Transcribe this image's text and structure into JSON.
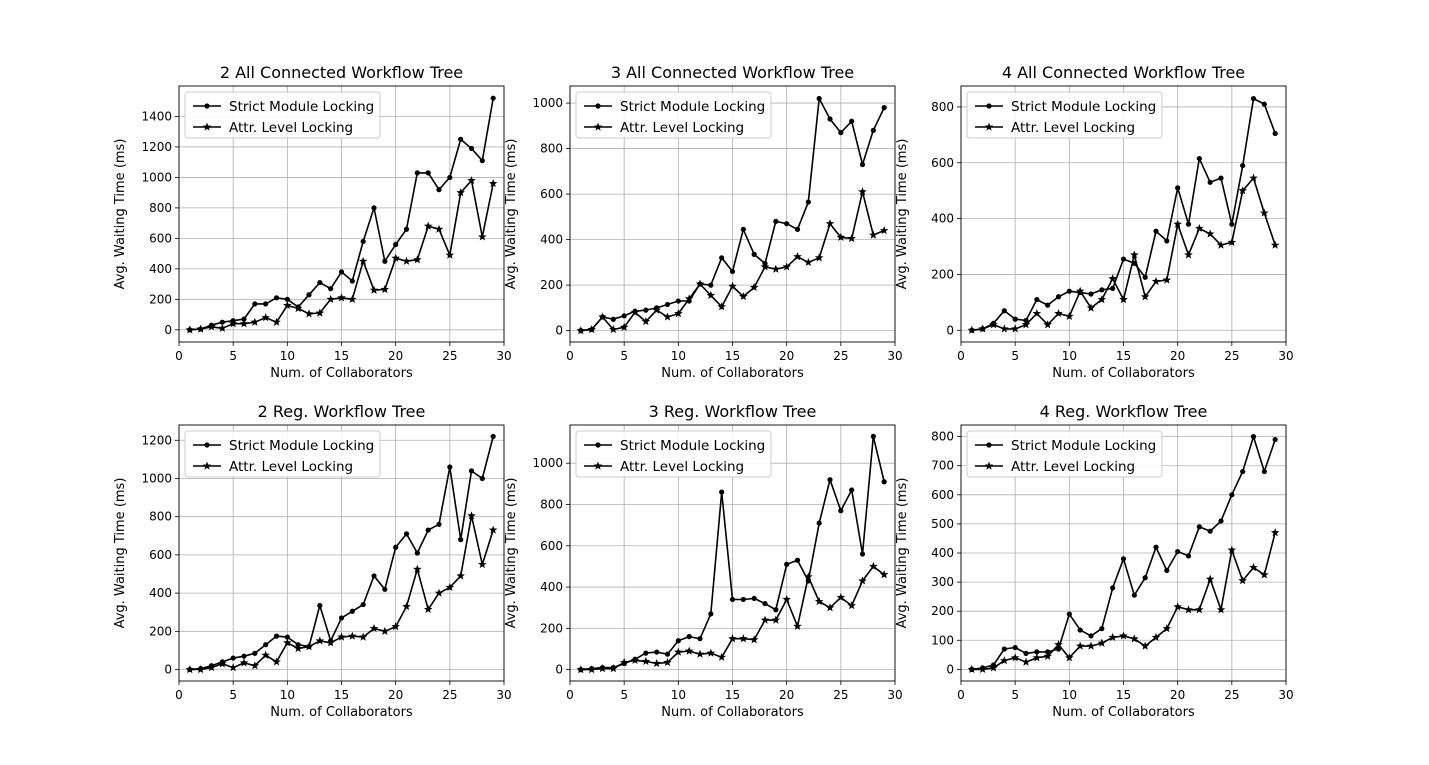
{
  "chart_data": [
    {
      "type": "line",
      "title": "2 All Connected Workflow Tree",
      "xlabel": "Num. of Collaborators",
      "ylabel": "Avg. Waiting Time (ms)",
      "xlim": [
        0,
        30
      ],
      "ylim": [
        -80,
        1600
      ],
      "xticks": [
        0,
        5,
        10,
        15,
        20,
        25,
        30
      ],
      "yticks": [
        0,
        200,
        400,
        600,
        800,
        1000,
        1200,
        1400
      ],
      "grid": true,
      "legend_position": "top-left",
      "x": [
        1,
        2,
        3,
        4,
        5,
        6,
        7,
        8,
        9,
        10,
        11,
        12,
        13,
        14,
        15,
        16,
        17,
        18,
        19,
        20,
        21,
        22,
        23,
        24,
        25,
        26,
        27,
        28,
        29
      ],
      "series": [
        {
          "name": "Strict Module Locking",
          "marker": "dot",
          "color": "#000000",
          "values": [
            0,
            5,
            30,
            50,
            60,
            70,
            170,
            170,
            210,
            200,
            150,
            230,
            310,
            270,
            380,
            320,
            580,
            800,
            450,
            560,
            660,
            1030,
            1030,
            920,
            1000,
            1250,
            1190,
            1110,
            1520
          ]
        },
        {
          "name": "Attr. Level Locking",
          "marker": "star",
          "color": "#000000",
          "values": [
            0,
            5,
            20,
            10,
            40,
            40,
            50,
            80,
            50,
            160,
            140,
            105,
            110,
            200,
            210,
            200,
            450,
            260,
            265,
            470,
            450,
            460,
            680,
            660,
            490,
            900,
            980,
            610,
            960
          ]
        }
      ]
    },
    {
      "type": "line",
      "title": "3 All Connected Workflow Tree",
      "xlabel": "Num. of Collaborators",
      "ylabel": "Avg. Waiting Time (ms)",
      "xlim": [
        0,
        30
      ],
      "ylim": [
        -50,
        1075
      ],
      "xticks": [
        0,
        5,
        10,
        15,
        20,
        25,
        30
      ],
      "yticks": [
        0,
        200,
        400,
        600,
        800,
        1000
      ],
      "grid": true,
      "legend_position": "top-left",
      "x": [
        1,
        2,
        3,
        4,
        5,
        6,
        7,
        8,
        9,
        10,
        11,
        12,
        13,
        14,
        15,
        16,
        17,
        18,
        19,
        20,
        21,
        22,
        23,
        24,
        25,
        26,
        27,
        28,
        29
      ],
      "series": [
        {
          "name": "Strict Module Locking",
          "marker": "dot",
          "color": "#000000",
          "values": [
            0,
            5,
            60,
            50,
            65,
            85,
            90,
            100,
            115,
            130,
            130,
            205,
            200,
            320,
            260,
            445,
            335,
            295,
            480,
            470,
            445,
            565,
            1020,
            930,
            870,
            920,
            730,
            880,
            980
          ]
        },
        {
          "name": "Attr. Level Locking",
          "marker": "star",
          "color": "#000000",
          "values": [
            0,
            5,
            60,
            5,
            15,
            80,
            40,
            90,
            60,
            75,
            140,
            205,
            155,
            105,
            195,
            150,
            190,
            280,
            270,
            280,
            325,
            300,
            320,
            470,
            410,
            405,
            610,
            420,
            440
          ]
        }
      ]
    },
    {
      "type": "line",
      "title": "4 All Connected Workflow Tree",
      "xlabel": "Num. of Collaborators",
      "ylabel": "Avg. Waiting Time (ms)",
      "xlim": [
        0,
        30
      ],
      "ylim": [
        -42,
        875
      ],
      "xticks": [
        0,
        5,
        10,
        15,
        20,
        25,
        30
      ],
      "yticks": [
        0,
        200,
        400,
        600,
        800
      ],
      "grid": true,
      "legend_position": "top-left",
      "x": [
        1,
        2,
        3,
        4,
        5,
        6,
        7,
        8,
        9,
        10,
        11,
        12,
        13,
        14,
        15,
        16,
        17,
        18,
        19,
        20,
        21,
        22,
        23,
        24,
        25,
        26,
        27,
        28,
        29
      ],
      "series": [
        {
          "name": "Strict Module Locking",
          "marker": "dot",
          "color": "#000000",
          "values": [
            0,
            5,
            25,
            70,
            40,
            35,
            110,
            90,
            120,
            140,
            135,
            130,
            145,
            150,
            255,
            240,
            190,
            355,
            320,
            510,
            380,
            615,
            530,
            545,
            380,
            590,
            830,
            810,
            705
          ]
        },
        {
          "name": "Attr. Level Locking",
          "marker": "star",
          "color": "#000000",
          "values": [
            0,
            5,
            20,
            5,
            5,
            20,
            60,
            20,
            60,
            50,
            140,
            80,
            110,
            185,
            110,
            270,
            120,
            175,
            180,
            380,
            270,
            365,
            345,
            305,
            315,
            500,
            545,
            420,
            305
          ]
        }
      ]
    },
    {
      "type": "line",
      "title": "2 Reg. Workflow Tree",
      "xlabel": "Num. of Collaborators",
      "ylabel": "Avg. Waiting Time (ms)",
      "xlim": [
        0,
        30
      ],
      "ylim": [
        -60,
        1280
      ],
      "xticks": [
        0,
        5,
        10,
        15,
        20,
        25,
        30
      ],
      "yticks": [
        0,
        200,
        400,
        600,
        800,
        1000,
        1200
      ],
      "grid": true,
      "legend_position": "top-left",
      "x": [
        1,
        2,
        3,
        4,
        5,
        6,
        7,
        8,
        9,
        10,
        11,
        12,
        13,
        14,
        15,
        16,
        17,
        18,
        19,
        20,
        21,
        22,
        23,
        24,
        25,
        26,
        27,
        28,
        29
      ],
      "series": [
        {
          "name": "Strict Module Locking",
          "marker": "dot",
          "color": "#000000",
          "values": [
            0,
            5,
            20,
            40,
            60,
            70,
            85,
            130,
            175,
            170,
            130,
            120,
            335,
            150,
            270,
            305,
            340,
            490,
            420,
            640,
            710,
            610,
            730,
            760,
            1060,
            680,
            1040,
            1000,
            1220
          ]
        },
        {
          "name": "Attr. Level Locking",
          "marker": "star",
          "color": "#000000",
          "values": [
            0,
            0,
            10,
            30,
            10,
            35,
            20,
            75,
            40,
            140,
            110,
            120,
            150,
            140,
            170,
            175,
            170,
            215,
            200,
            225,
            330,
            525,
            315,
            400,
            430,
            490,
            805,
            550,
            730
          ]
        }
      ]
    },
    {
      "type": "line",
      "title": "3 Reg. Workflow Tree",
      "xlabel": "Num. of Collaborators",
      "ylabel": "Avg. Waiting Time (ms)",
      "xlim": [
        0,
        30
      ],
      "ylim": [
        -55,
        1185
      ],
      "xticks": [
        0,
        5,
        10,
        15,
        20,
        25,
        30
      ],
      "yticks": [
        0,
        200,
        400,
        600,
        800,
        1000
      ],
      "grid": true,
      "legend_position": "top-left",
      "x": [
        1,
        2,
        3,
        4,
        5,
        6,
        7,
        8,
        9,
        10,
        11,
        12,
        13,
        14,
        15,
        16,
        17,
        18,
        19,
        20,
        21,
        22,
        23,
        24,
        25,
        26,
        27,
        28,
        29
      ],
      "series": [
        {
          "name": "Strict Module Locking",
          "marker": "dot",
          "color": "#000000",
          "values": [
            0,
            5,
            10,
            10,
            30,
            50,
            80,
            85,
            75,
            140,
            160,
            150,
            270,
            860,
            340,
            340,
            345,
            320,
            290,
            510,
            530,
            430,
            710,
            920,
            770,
            870,
            560,
            1130,
            910
          ]
        },
        {
          "name": "Attr. Level Locking",
          "marker": "star",
          "color": "#000000",
          "values": [
            0,
            0,
            5,
            5,
            35,
            45,
            40,
            30,
            35,
            85,
            90,
            75,
            80,
            60,
            150,
            150,
            145,
            240,
            240,
            340,
            210,
            450,
            330,
            300,
            350,
            310,
            430,
            500,
            460
          ]
        }
      ]
    },
    {
      "type": "line",
      "title": "4 Reg. Workflow Tree",
      "xlabel": "Num. of Collaborators",
      "ylabel": "Avg. Waiting Time (ms)",
      "xlim": [
        0,
        30
      ],
      "ylim": [
        -40,
        840
      ],
      "xticks": [
        0,
        5,
        10,
        15,
        20,
        25,
        30
      ],
      "yticks": [
        0,
        100,
        200,
        300,
        400,
        500,
        600,
        700,
        800
      ],
      "grid": true,
      "legend_position": "top-left",
      "x": [
        1,
        2,
        3,
        4,
        5,
        6,
        7,
        8,
        9,
        10,
        11,
        12,
        13,
        14,
        15,
        16,
        17,
        18,
        19,
        20,
        21,
        22,
        23,
        24,
        25,
        26,
        27,
        28,
        29
      ],
      "series": [
        {
          "name": "Strict Module Locking",
          "marker": "dot",
          "color": "#000000",
          "values": [
            0,
            5,
            15,
            70,
            75,
            55,
            60,
            60,
            70,
            190,
            135,
            115,
            140,
            280,
            380,
            255,
            315,
            420,
            340,
            405,
            390,
            490,
            475,
            510,
            600,
            680,
            800,
            680,
            790
          ]
        },
        {
          "name": "Attr. Level Locking",
          "marker": "star",
          "color": "#000000",
          "values": [
            0,
            0,
            5,
            30,
            40,
            25,
            40,
            45,
            85,
            40,
            80,
            80,
            90,
            110,
            115,
            105,
            80,
            110,
            140,
            215,
            205,
            205,
            310,
            205,
            410,
            305,
            350,
            325,
            470
          ]
        }
      ]
    }
  ]
}
